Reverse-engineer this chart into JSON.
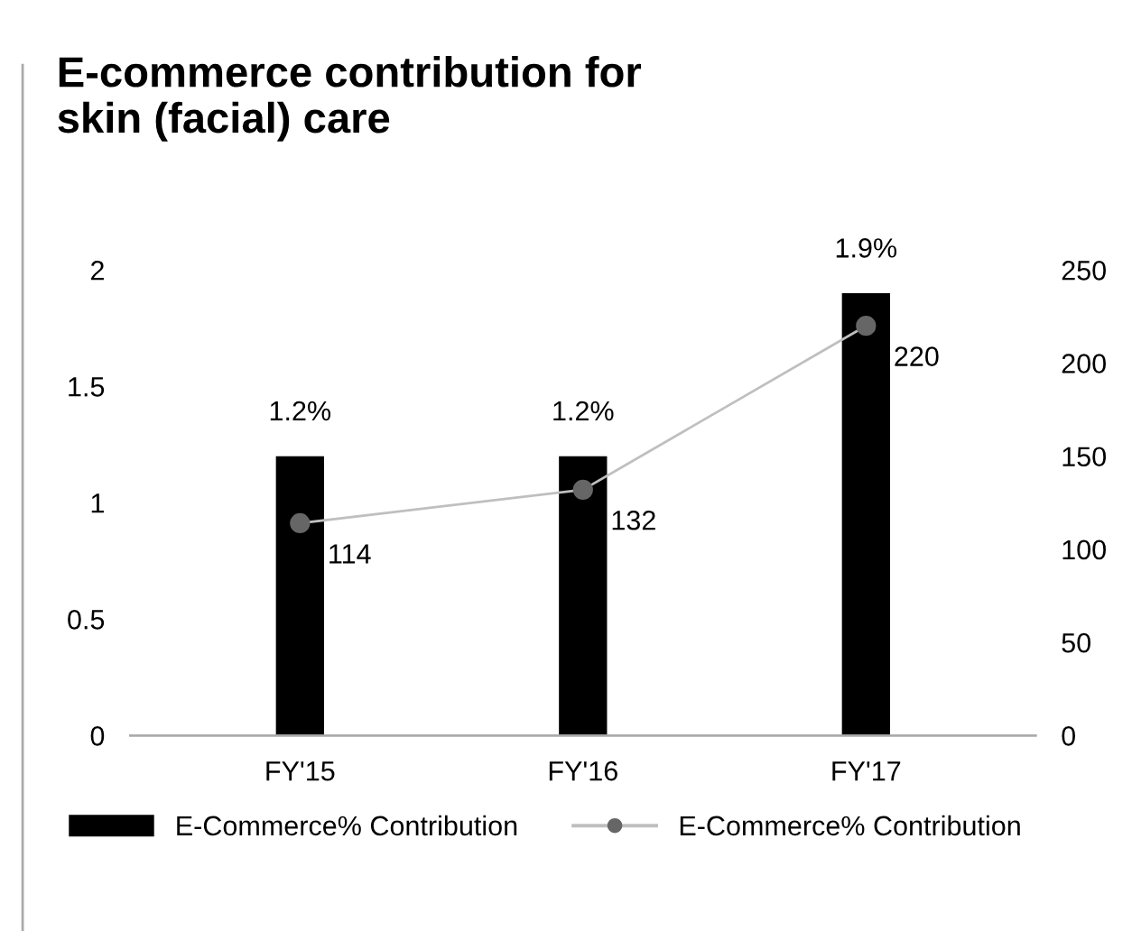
{
  "chart_data": {
    "type": "bar",
    "title": "E-commerce contribution for\nskin (facial) care",
    "categories": [
      "FY'15",
      "FY'16",
      "FY'17"
    ],
    "series": [
      {
        "name": "E-Commerce% Contribution",
        "color": "#000000",
        "values": [
          1.2,
          1.2,
          1.9
        ],
        "value_labels": [
          "1.2%",
          "1.2%",
          "1.9%"
        ]
      },
      {
        "name": "E-Commerce% Contribution",
        "type": "line",
        "axis": "y2",
        "color": "#bfbfbf",
        "marker": "circle",
        "values": [
          114,
          132,
          220
        ],
        "value_labels": [
          "114",
          "132",
          "220"
        ]
      }
    ],
    "ylim": [
      0,
      2
    ],
    "yticks": [
      0,
      0.5,
      1,
      1.5,
      2
    ],
    "y2lim": [
      0,
      250
    ],
    "y2ticks": [
      0,
      50,
      100,
      150,
      200,
      250
    ],
    "grid": false,
    "legend": "bottom left"
  }
}
